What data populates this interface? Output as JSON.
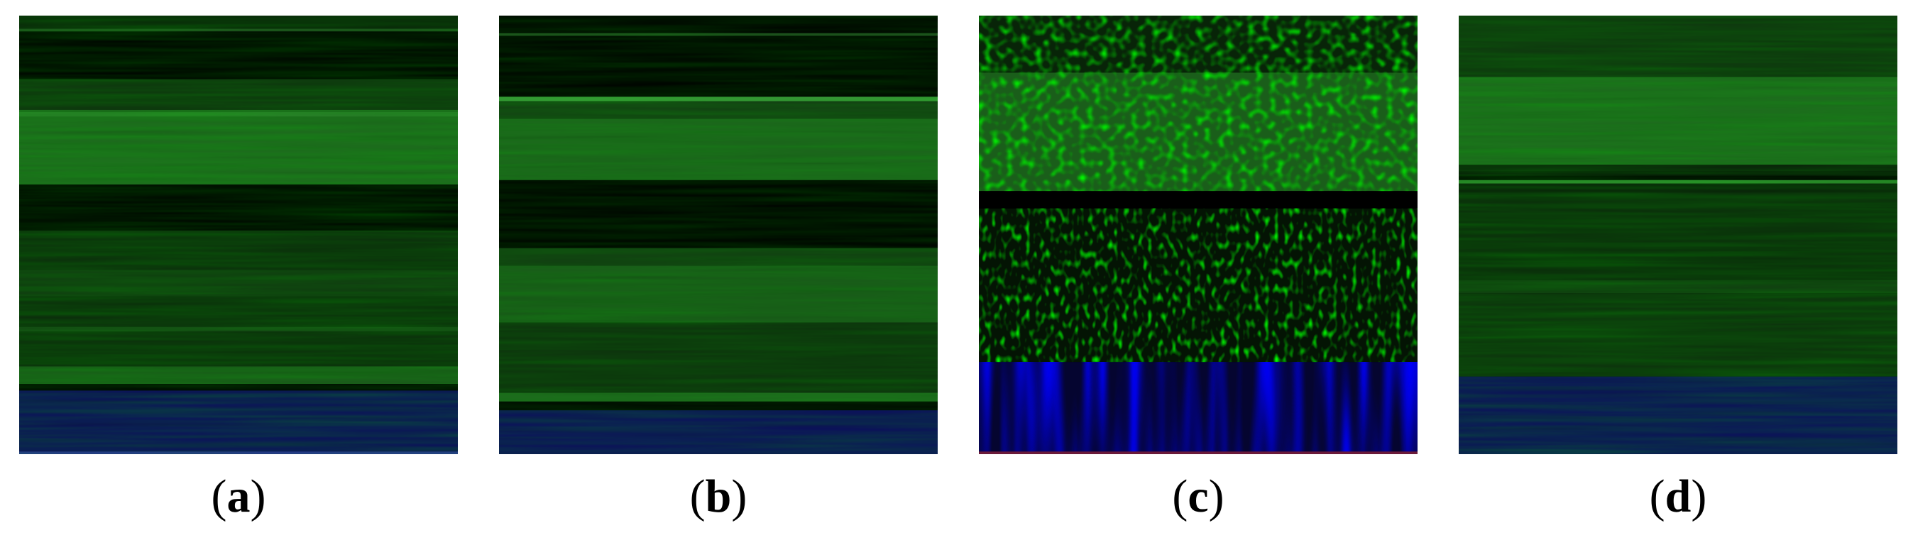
{
  "panels": [
    {
      "id": "a",
      "label_open": "(",
      "letter": "a",
      "label_close": ")"
    },
    {
      "id": "b",
      "label_open": "(",
      "letter": "b",
      "label_close": ")"
    },
    {
      "id": "c",
      "label_open": "(",
      "letter": "c",
      "label_close": ")"
    },
    {
      "id": "d",
      "label_open": "(",
      "letter": "d",
      "label_close": ")"
    }
  ],
  "colors": {
    "black": "#000000",
    "green_dark": "#0b2a0b",
    "green_mid": "#1c5a1c",
    "green_bright": "#2e8a2e",
    "blue": "#0c0c6a"
  }
}
